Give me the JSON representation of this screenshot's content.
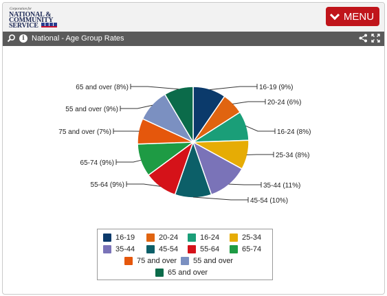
{
  "header": {
    "logo_lines": [
      "NATIONAL &",
      "COMMUNITY",
      "SERVICE"
    ],
    "logo_tagline": "Corporation for",
    "menu_label": "MENU"
  },
  "panel": {
    "title": "National - Age Group Rates"
  },
  "icons": {
    "search": "search-icon",
    "info": "info-icon",
    "share": "share-icon",
    "expand": "expand-icon",
    "menu_chevron": "chevron-down-icon"
  },
  "colors": {
    "menu_button": "#c0151b",
    "title_bar": "#5a5a5a"
  },
  "chart_data": {
    "type": "pie",
    "title": "",
    "slices": [
      {
        "name": "16-19",
        "value": 9,
        "label": "16-19 (9%)",
        "color": "#0b3a6b"
      },
      {
        "name": "20-24",
        "value": 6,
        "label": "20-24 (6%)",
        "color": "#e06410"
      },
      {
        "name": "16-24",
        "value": 8,
        "label": "16-24 (8%)",
        "color": "#1a9e78"
      },
      {
        "name": "25-34",
        "value": 8,
        "label": "25-34 (8%)",
        "color": "#e6ac05"
      },
      {
        "name": "35-44",
        "value": 11,
        "label": "35-44 (11%)",
        "color": "#7a73b8"
      },
      {
        "name": "45-54",
        "value": 10,
        "label": "45-54 (10%)",
        "color": "#0c5f68"
      },
      {
        "name": "55-64",
        "value": 9,
        "label": "55-64 (9%)",
        "color": "#d51219"
      },
      {
        "name": "65-74",
        "value": 9,
        "label": "65-74 (9%)",
        "color": "#1e9b44"
      },
      {
        "name": "75 and over",
        "value": 7,
        "label": "75 and over (7%)",
        "color": "#e5570c"
      },
      {
        "name": "55 and over",
        "value": 9,
        "label": "55 and over (9%)",
        "color": "#7b90c1"
      },
      {
        "name": "65 and over",
        "value": 8,
        "label": "65 and over (8%)",
        "color": "#0b6b4a"
      }
    ],
    "legend": {
      "placement": "bottom",
      "entries": [
        "16-19",
        "20-24",
        "16-24",
        "25-34",
        "35-44",
        "45-54",
        "55-64",
        "65-74",
        "75 and over",
        "55 and over",
        "65 and over"
      ]
    }
  }
}
